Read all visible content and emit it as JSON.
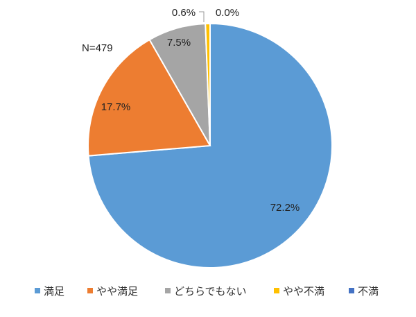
{
  "chart_data": {
    "type": "pie",
    "annotation": "N=479",
    "categories": [
      "満足",
      "やや満足",
      "どちらでもない",
      "やや不満",
      "不満"
    ],
    "values": [
      72.2,
      17.7,
      7.5,
      0.6,
      0.0
    ],
    "labels": [
      "72.2%",
      "17.7%",
      "7.5%",
      "0.6%",
      "0.0%"
    ],
    "colors": [
      "#5B9BD5",
      "#ED7D31",
      "#A5A5A5",
      "#FFC000",
      "#4472C4"
    ],
    "start_angle_deg": 0,
    "direction": "clockwise",
    "legend_position": "bottom"
  }
}
